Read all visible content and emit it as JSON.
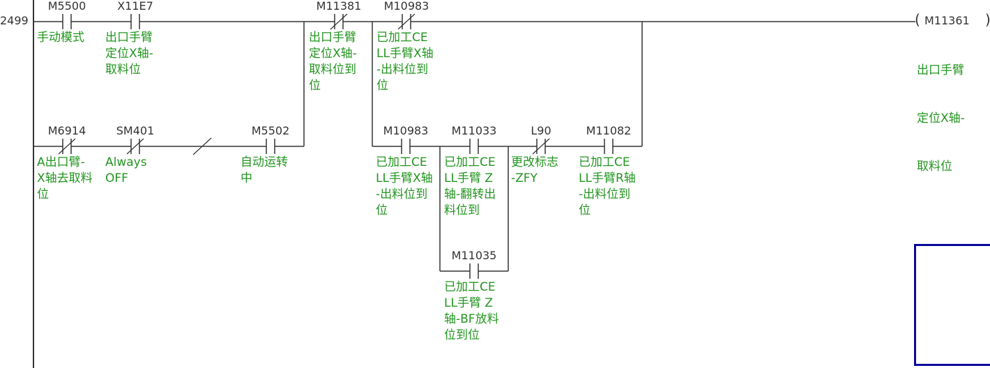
{
  "rung": {
    "step_number": "2499",
    "contacts": [
      {
        "address": "M5500",
        "type": "NO",
        "comment": [
          "手动模式"
        ]
      },
      {
        "address": "X11E7",
        "type": "NO",
        "comment": [
          "出口手臂",
          "定位X轴-",
          "取料位"
        ]
      },
      {
        "address": "M6914",
        "type": "NC",
        "comment": [
          "A出口臂-",
          "X轴去取料",
          "位"
        ]
      },
      {
        "address": "SM401",
        "type": "NC",
        "comment": [
          "Always",
          "OFF"
        ]
      },
      {
        "address": "M5502",
        "type": "NO",
        "comment": [
          "自动运转",
          "中"
        ]
      },
      {
        "address": "M11381",
        "type": "NC",
        "comment": [
          "出口手臂",
          "定位X轴-",
          "取料位到",
          "位"
        ]
      },
      {
        "address": "M10983",
        "type": "NC",
        "comment": [
          "已加工CE",
          "LL手臂X轴",
          "-出料位到",
          "位"
        ]
      },
      {
        "address": "M10983",
        "type": "NO",
        "comment": [
          "已加工CE",
          "LL手臂X轴",
          "-出料位到",
          "位"
        ]
      },
      {
        "address": "M11033",
        "type": "NO",
        "comment": [
          "已加工CE",
          "LL手臂 Z",
          "轴-翻转出",
          "料位到"
        ]
      },
      {
        "address": "M11035",
        "type": "NO",
        "comment": [
          "已加工CE",
          "LL手臂 Z",
          "轴-BF放料",
          "位到位"
        ]
      },
      {
        "address": "L90",
        "type": "NC",
        "comment": [
          "更改标志",
          "-ZFY"
        ]
      },
      {
        "address": "M11082",
        "type": "NO",
        "comment": [
          "已加工CE",
          "LL手臂R轴",
          "-出料位到",
          "位"
        ]
      }
    ],
    "coil": {
      "address": "M11361",
      "open": "(",
      "close": ")",
      "comment": [
        "出口手臂",
        "定位X轴-",
        "取料位"
      ]
    }
  },
  "colors": {
    "wire": "#333333",
    "comment": "#22951f",
    "selection": "#0a0a9a"
  }
}
